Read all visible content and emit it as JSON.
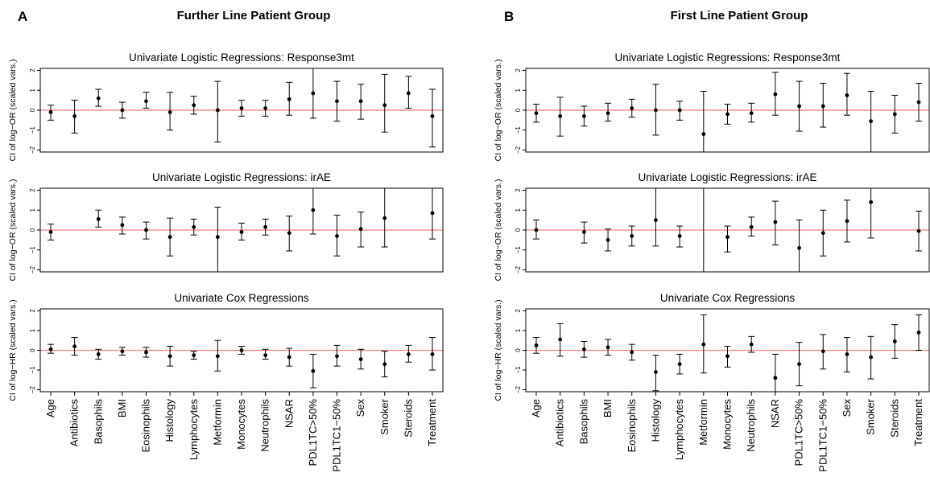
{
  "panels": [
    {
      "letter": "A",
      "heading": "Further Line Patient Group"
    },
    {
      "letter": "B",
      "heading": "First Line Patient Group"
    }
  ],
  "chart_data": [
    {
      "panel": "A",
      "type": "scatter",
      "error_bars": true,
      "title": "Univariate Logistic Regressions: Response3mt",
      "ylabel": "CI of log−OR (scaled vars.)",
      "ylim": [
        -2.1,
        2.1
      ],
      "yticks": [
        -2,
        -1,
        0,
        1,
        2
      ],
      "ytick_labels": [
        "−2",
        "−1",
        "0",
        "1",
        "2"
      ],
      "reference_line": 0,
      "reference_color": "#f08080",
      "categories": [
        "Age",
        "Antibiotics",
        "Basophils",
        "BMI",
        "Eosinophils",
        "Histology",
        "Lymphocytes",
        "Metformin",
        "Monocytes",
        "Neutrophils",
        "NSAR",
        "PDL1TC>50%",
        "PDL1TC1−50%",
        "Sex",
        "Smoker",
        "Steroids",
        "Treatment"
      ],
      "estimate": [
        -0.1,
        -0.3,
        0.6,
        0.0,
        0.45,
        -0.1,
        0.25,
        0.0,
        0.1,
        0.1,
        0.55,
        0.85,
        0.45,
        0.45,
        0.25,
        0.85,
        -0.3
      ],
      "lower": [
        -0.5,
        -1.15,
        0.2,
        -0.4,
        0.1,
        -1.0,
        -0.2,
        -1.6,
        -0.3,
        -0.3,
        -0.25,
        -0.4,
        -0.55,
        -0.45,
        -1.1,
        0.1,
        -1.85
      ],
      "upper": [
        0.25,
        0.5,
        1.05,
        0.4,
        0.9,
        0.9,
        0.7,
        1.45,
        0.5,
        0.5,
        1.4,
        2.1,
        1.45,
        1.3,
        1.8,
        1.7,
        1.05
      ]
    },
    {
      "panel": "A",
      "type": "scatter",
      "error_bars": true,
      "title": "Univariate Logistic Regressions: irAE",
      "ylabel": "CI of log−OR (scaled vars.)",
      "ylim": [
        -2.1,
        2.1
      ],
      "yticks": [
        -2,
        -1,
        0,
        1,
        2
      ],
      "ytick_labels": [
        "−2",
        "−1",
        "0",
        "1",
        "2"
      ],
      "reference_line": 0,
      "reference_color": "#f08080",
      "categories": [
        "Age",
        "Antibiotics",
        "Basophils",
        "BMI",
        "Eosinophils",
        "Histology",
        "Lymphocytes",
        "Metformin",
        "Monocytes",
        "Neutrophils",
        "NSAR",
        "PDL1TC>50%",
        "PDL1TC1−50%",
        "Sex",
        "Smoker",
        "Steroids",
        "Treatment"
      ],
      "estimate": [
        -0.1,
        null,
        0.55,
        0.25,
        0.0,
        -0.35,
        0.15,
        -0.35,
        -0.1,
        0.15,
        -0.15,
        1.0,
        -0.3,
        0.05,
        0.6,
        null,
        0.85
      ],
      "lower": [
        -0.5,
        null,
        0.15,
        -0.2,
        -0.45,
        -1.3,
        -0.25,
        -2.1,
        -0.5,
        -0.25,
        -1.05,
        -0.2,
        -1.3,
        -0.85,
        -0.85,
        null,
        -0.45
      ],
      "upper": [
        0.3,
        null,
        1.0,
        0.65,
        0.4,
        0.6,
        0.55,
        1.15,
        0.35,
        0.55,
        0.7,
        2.1,
        0.75,
        0.9,
        2.1,
        null,
        2.1
      ]
    },
    {
      "panel": "A",
      "type": "scatter",
      "error_bars": true,
      "title": "Univariate Cox Regressions",
      "ylabel": "CI of log−HR (scaled vars.)",
      "ylim": [
        -2.1,
        2.1
      ],
      "yticks": [
        -2,
        -1,
        0,
        1,
        2
      ],
      "ytick_labels": [
        "−2",
        "−1",
        "0",
        "1",
        "2"
      ],
      "reference_line": 0,
      "reference_color": "#f08080",
      "categories": [
        "Age",
        "Antibiotics",
        "Basophils",
        "BMI",
        "Eosinophils",
        "Histology",
        "Lymphocytes",
        "Metformin",
        "Monocytes",
        "Neutrophils",
        "NSAR",
        "PDL1TC>50%",
        "PDL1TC1−50%",
        "Sex",
        "Smoker",
        "Steroids",
        "Treatment"
      ],
      "estimate": [
        0.05,
        0.2,
        -0.2,
        -0.05,
        -0.1,
        -0.3,
        -0.25,
        -0.3,
        0.0,
        -0.25,
        -0.35,
        -1.05,
        -0.3,
        -0.45,
        -0.7,
        -0.2,
        -0.2
      ],
      "lower": [
        -0.15,
        -0.25,
        -0.45,
        -0.25,
        -0.35,
        -0.8,
        -0.45,
        -1.05,
        -0.2,
        -0.45,
        -0.8,
        -1.9,
        -0.8,
        -0.95,
        -1.35,
        -0.6,
        -1.0
      ],
      "upper": [
        0.3,
        0.65,
        0.05,
        0.15,
        0.15,
        0.2,
        -0.05,
        0.5,
        0.2,
        0.05,
        0.1,
        -0.2,
        0.25,
        0.05,
        -0.05,
        0.25,
        0.65
      ]
    },
    {
      "panel": "B",
      "type": "scatter",
      "error_bars": true,
      "title": "Univariate Logistic Regressions: Response3mt",
      "ylabel": "CI of log−OR (scaled vars.)",
      "ylim": [
        -2.1,
        2.1
      ],
      "yticks": [
        -2,
        -1,
        0,
        1,
        2
      ],
      "ytick_labels": [
        "−2",
        "−1",
        "0",
        "1",
        "2"
      ],
      "reference_line": 0,
      "reference_color": "#f08080",
      "categories": [
        "Age",
        "Antibiotics",
        "Basophils",
        "BMI",
        "Eosinophils",
        "Histology",
        "Lymphocytes",
        "Metformin",
        "Monocytes",
        "Neutrophils",
        "NSAR",
        "PDL1TC>50%",
        "PDL1TC1−50%",
        "Sex",
        "Smoker",
        "Steroids",
        "Treatment"
      ],
      "estimate": [
        -0.15,
        -0.3,
        -0.3,
        -0.15,
        0.1,
        0.0,
        0.0,
        -1.2,
        -0.2,
        -0.15,
        0.8,
        0.2,
        0.2,
        0.75,
        -0.55,
        -0.2,
        0.4
      ],
      "lower": [
        -0.6,
        -1.3,
        -0.8,
        -0.55,
        -0.35,
        -1.25,
        -0.5,
        -2.1,
        -0.7,
        -0.6,
        -0.25,
        -1.05,
        -0.85,
        -0.25,
        -2.1,
        -1.15,
        -0.55
      ],
      "upper": [
        0.3,
        0.65,
        0.2,
        0.35,
        0.55,
        1.3,
        0.45,
        0.95,
        0.3,
        0.35,
        1.9,
        1.45,
        1.35,
        1.85,
        0.95,
        0.75,
        1.35
      ]
    },
    {
      "panel": "B",
      "type": "scatter",
      "error_bars": true,
      "title": "Univariate Logistic Regressions: irAE",
      "ylabel": "CI of log−OR (scaled vars.)",
      "ylim": [
        -2.1,
        2.1
      ],
      "yticks": [
        -2,
        -1,
        0,
        1,
        2
      ],
      "ytick_labels": [
        "−2",
        "−1",
        "0",
        "1",
        "2"
      ],
      "reference_line": 0,
      "reference_color": "#f08080",
      "categories": [
        "Age",
        "Antibiotics",
        "Basophils",
        "BMI",
        "Eosinophils",
        "Histology",
        "Lymphocytes",
        "Metformin",
        "Monocytes",
        "Neutrophils",
        "NSAR",
        "PDL1TC>50%",
        "PDL1TC1−50%",
        "Sex",
        "Smoker",
        "Steroids",
        "Treatment"
      ],
      "estimate": [
        0.0,
        null,
        -0.1,
        -0.5,
        -0.3,
        0.5,
        -0.3,
        null,
        -0.35,
        0.15,
        0.4,
        -0.9,
        -0.15,
        0.45,
        1.4,
        null,
        -0.05
      ],
      "lower": [
        -0.45,
        null,
        -0.65,
        -1.05,
        -0.8,
        -0.8,
        -0.85,
        -2.1,
        -1.1,
        -0.3,
        -0.75,
        -2.1,
        -1.3,
        -0.6,
        -0.4,
        null,
        -1.05
      ],
      "upper": [
        0.5,
        null,
        0.4,
        0.05,
        0.2,
        2.1,
        0.2,
        2.1,
        0.2,
        0.65,
        1.45,
        0.5,
        1.0,
        1.5,
        2.1,
        null,
        0.95
      ]
    },
    {
      "panel": "B",
      "type": "scatter",
      "error_bars": true,
      "title": "Univariate Cox Regressions",
      "ylabel": "CI of log−HR (scaled vars.)",
      "ylim": [
        -2.1,
        2.1
      ],
      "yticks": [
        -2,
        -1,
        0,
        1,
        2
      ],
      "ytick_labels": [
        "−2",
        "−1",
        "0",
        "1",
        "2"
      ],
      "reference_line": 0,
      "reference_color": "#f08080",
      "categories": [
        "Age",
        "Antibiotics",
        "Basophils",
        "BMI",
        "Eosinophils",
        "Histology",
        "Lymphocytes",
        "Metformin",
        "Monocytes",
        "Neutrophils",
        "NSAR",
        "PDL1TC>50%",
        "PDL1TC1−50%",
        "Sex",
        "Smoker",
        "Steroids",
        "Treatment"
      ],
      "estimate": [
        0.25,
        0.55,
        0.05,
        0.15,
        -0.1,
        -1.1,
        -0.7,
        0.3,
        -0.3,
        0.3,
        -1.4,
        -0.7,
        -0.05,
        -0.2,
        -0.35,
        0.45,
        0.9
      ],
      "lower": [
        -0.15,
        -0.3,
        -0.35,
        -0.25,
        -0.5,
        -2.05,
        -1.2,
        -1.15,
        -0.85,
        -0.1,
        -2.1,
        -1.8,
        -0.95,
        -1.1,
        -1.45,
        -0.4,
        0.0
      ],
      "upper": [
        0.65,
        1.35,
        0.45,
        0.55,
        0.3,
        -0.25,
        -0.2,
        1.8,
        0.2,
        0.7,
        -0.2,
        0.4,
        0.8,
        0.65,
        0.7,
        1.3,
        1.8
      ]
    }
  ]
}
